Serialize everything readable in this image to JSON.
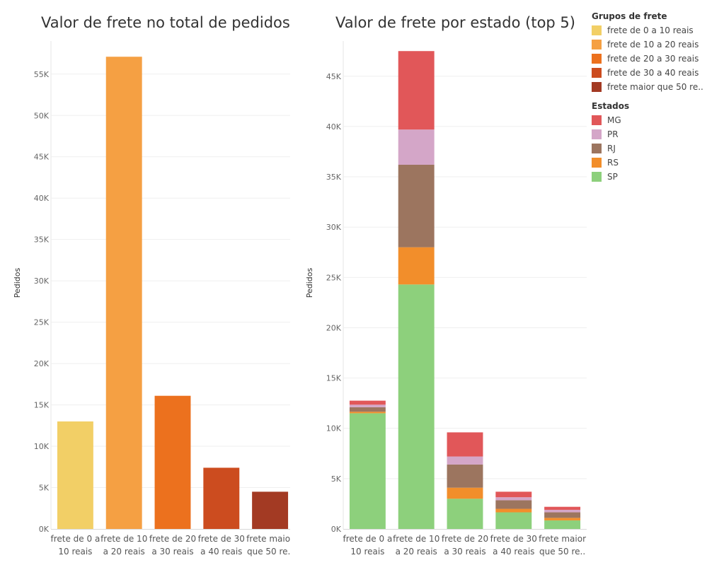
{
  "chart_data": [
    {
      "type": "bar",
      "title": "Valor de frete no total de pedidos",
      "ylabel": "Pedidos",
      "xlabel": "",
      "categories": [
        [
          "frete de 0 a",
          "10 reais"
        ],
        [
          "frete de 10",
          "a 20 reais"
        ],
        [
          "frete de 20",
          "a 30 reais"
        ],
        [
          "frete de 30",
          "a 40 reais"
        ],
        [
          "frete maior",
          "que 50 re.."
        ]
      ],
      "values": [
        13000,
        57100,
        16100,
        7400,
        4500
      ],
      "colors": [
        "#F2CF66",
        "#F5A043",
        "#EC711E",
        "#CC4C1F",
        "#A33A23"
      ],
      "ylim": [
        0,
        59000
      ],
      "yticks": [
        0,
        5000,
        10000,
        15000,
        20000,
        25000,
        30000,
        35000,
        40000,
        45000,
        50000,
        55000
      ],
      "ytick_labels": [
        "0K",
        "5K",
        "10K",
        "15K",
        "20K",
        "25K",
        "30K",
        "35K",
        "40K",
        "45K",
        "50K",
        "55K"
      ],
      "grid": true
    },
    {
      "type": "bar",
      "stacked": true,
      "title": "Valor de frete por estado (top 5)",
      "ylabel": "Pedidos",
      "xlabel": "",
      "categories": [
        [
          "frete de 0 a",
          "10 reais"
        ],
        [
          "frete de 10",
          "a 20 reais"
        ],
        [
          "frete de 20",
          "a 30 reais"
        ],
        [
          "frete de 30",
          "a 40 reais"
        ],
        [
          "frete maior",
          "que 50 re.."
        ]
      ],
      "series": [
        {
          "name": "SP",
          "color": "#8DD07C",
          "values": [
            11500,
            24300,
            3000,
            1650,
            850
          ]
        },
        {
          "name": "RS",
          "color": "#F28E2B",
          "values": [
            150,
            3700,
            1100,
            350,
            250
          ]
        },
        {
          "name": "RJ",
          "color": "#9C755F",
          "values": [
            450,
            8200,
            2300,
            850,
            550
          ]
        },
        {
          "name": "PR",
          "color": "#D4A6C8",
          "values": [
            250,
            3500,
            800,
            300,
            250
          ]
        },
        {
          "name": "MG",
          "color": "#E15759",
          "values": [
            400,
            7800,
            2400,
            550,
            300
          ]
        }
      ],
      "ylim": [
        0,
        48500
      ],
      "yticks": [
        0,
        5000,
        10000,
        15000,
        20000,
        25000,
        30000,
        35000,
        40000,
        45000
      ],
      "ytick_labels": [
        "0K",
        "5K",
        "10K",
        "15K",
        "20K",
        "25K",
        "30K",
        "35K",
        "40K",
        "45K"
      ],
      "grid": true
    }
  ],
  "legend_groups": {
    "title": "Grupos de frete",
    "items": [
      {
        "label": "frete de 0 a 10 reais",
        "color": "#F2CF66"
      },
      {
        "label": "frete de 10 a 20 reais",
        "color": "#F5A043"
      },
      {
        "label": "frete de 20 a 30 reais",
        "color": "#EC711E"
      },
      {
        "label": "frete de 30 a 40 reais",
        "color": "#CC4C1F"
      },
      {
        "label": "frete maior que 50 re..",
        "color": "#A33A23"
      }
    ]
  },
  "legend_states": {
    "title": "Estados",
    "items": [
      {
        "label": "MG",
        "color": "#E15759"
      },
      {
        "label": "PR",
        "color": "#D4A6C8"
      },
      {
        "label": "RJ",
        "color": "#9C755F"
      },
      {
        "label": "RS",
        "color": "#F28E2B"
      },
      {
        "label": "SP",
        "color": "#8DD07C"
      }
    ]
  }
}
